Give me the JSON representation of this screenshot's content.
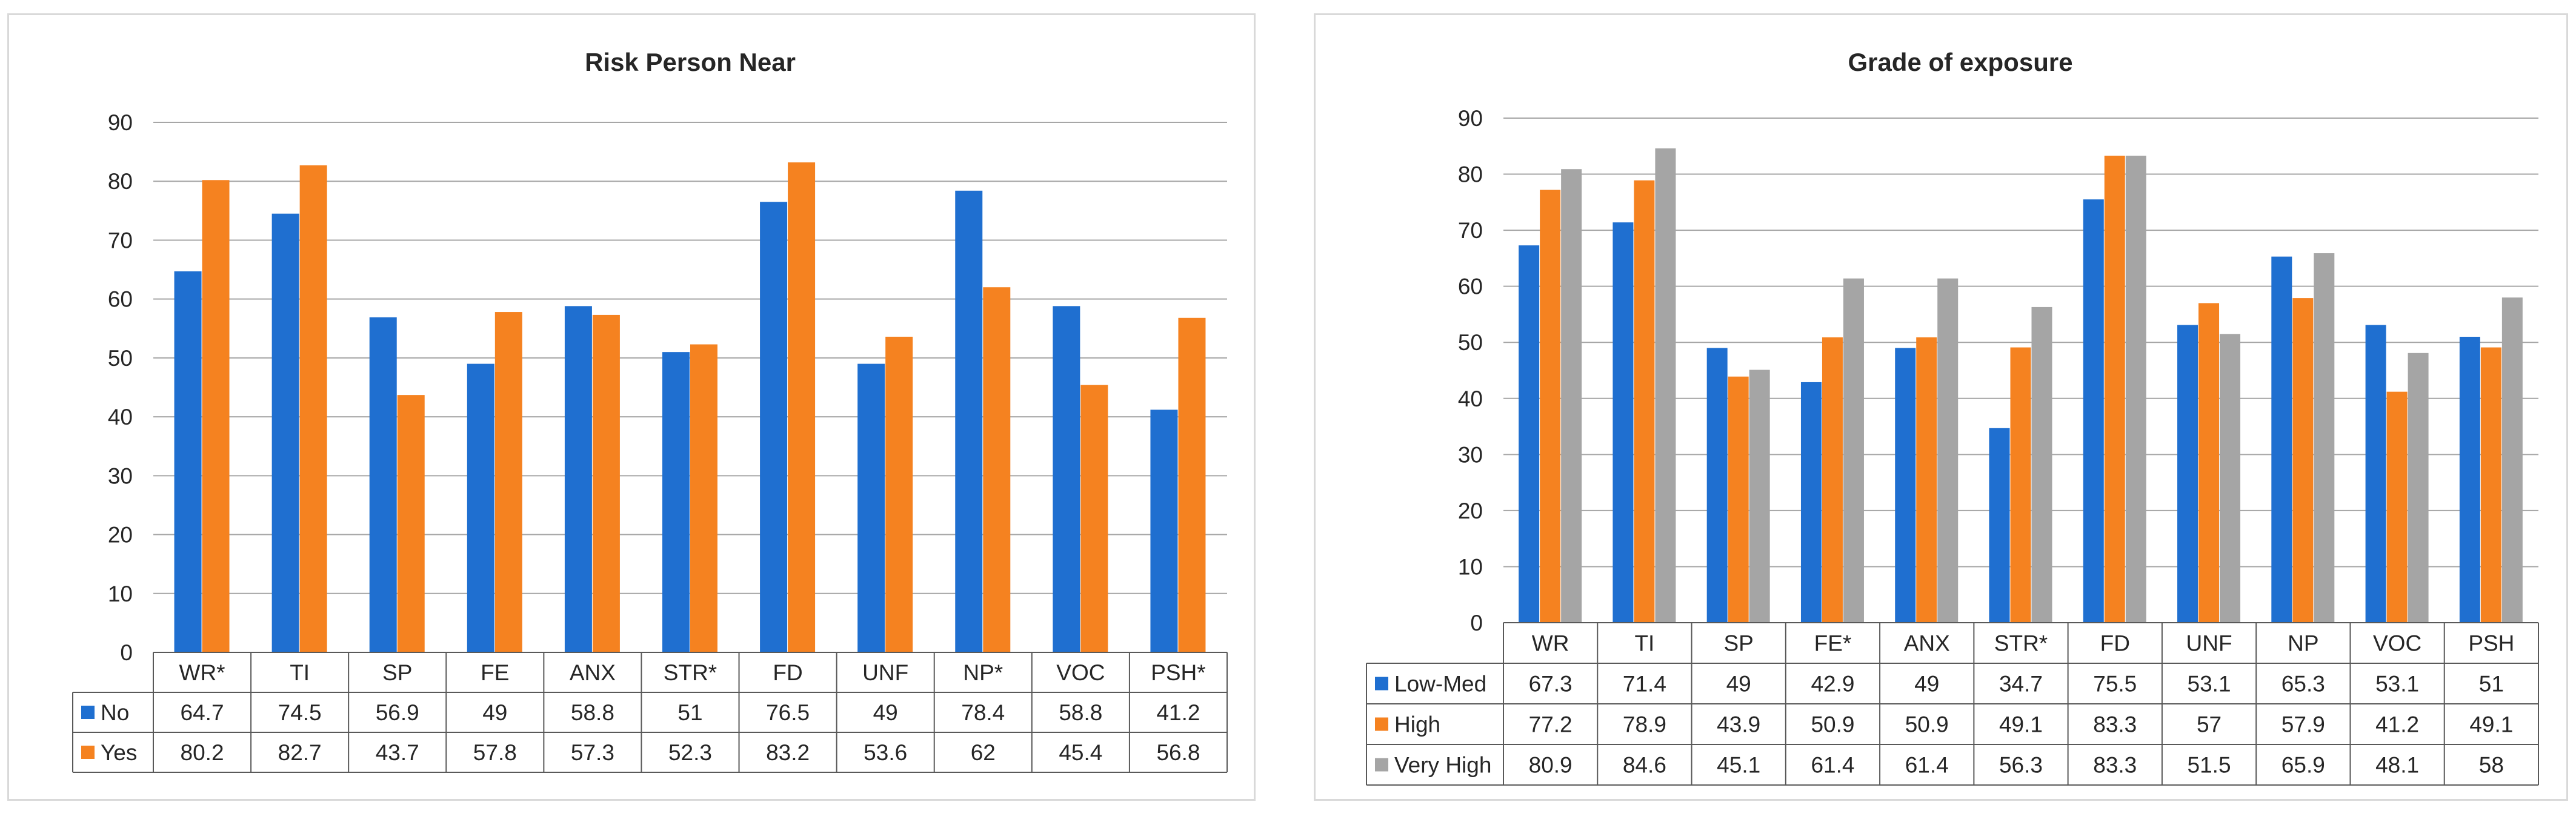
{
  "chart_data": [
    {
      "type": "bar",
      "title": "Risk Person Near",
      "categories": [
        "WR*",
        "TI",
        "SP",
        "FE",
        "ANX",
        "STR*",
        "FD",
        "UNF",
        "NP*",
        "VOC",
        "PSH*"
      ],
      "ylim": [
        0,
        90
      ],
      "yticks": [
        "0",
        "10",
        "20",
        "30",
        "40",
        "50",
        "60",
        "70",
        "80",
        "90"
      ],
      "grid": true,
      "legend": "data-table",
      "series": [
        {
          "name": "No",
          "color": "#1f6fd0",
          "values": [
            64.7,
            74.5,
            56.9,
            49,
            58.8,
            51,
            76.5,
            49,
            78.4,
            58.8,
            41.2
          ],
          "labels": [
            "64.7",
            "74.5",
            "56.9",
            "49",
            "58.8",
            "51",
            "76.5",
            "49",
            "78.4",
            "58.8",
            "41.2"
          ]
        },
        {
          "name": "Yes",
          "color": "#f58220",
          "values": [
            80.2,
            82.7,
            43.7,
            57.8,
            57.3,
            52.3,
            83.2,
            53.6,
            62,
            45.4,
            56.8
          ],
          "labels": [
            "80.2",
            "82.7",
            "43.7",
            "57.8",
            "57.3",
            "52.3",
            "83.2",
            "53.6",
            "62",
            "45.4",
            "56.8"
          ]
        }
      ]
    },
    {
      "type": "bar",
      "title": "Grade of exposure",
      "categories": [
        "WR",
        "TI",
        "SP",
        "FE*",
        "ANX",
        "STR*",
        "FD",
        "UNF",
        "NP",
        "VOC",
        "PSH"
      ],
      "ylim": [
        0,
        90
      ],
      "yticks": [
        "0",
        "10",
        "20",
        "30",
        "40",
        "50",
        "60",
        "70",
        "80",
        "90"
      ],
      "grid": true,
      "legend": "data-table",
      "series": [
        {
          "name": "Low-Med",
          "color": "#1f6fd0",
          "values": [
            67.3,
            71.4,
            49,
            42.9,
            49,
            34.7,
            75.5,
            53.1,
            65.3,
            53.1,
            51
          ],
          "labels": [
            "67.3",
            "71.4",
            "49",
            "42.9",
            "49",
            "34.7",
            "75.5",
            "53.1",
            "65.3",
            "53.1",
            "51"
          ]
        },
        {
          "name": "High",
          "color": "#f58220",
          "values": [
            77.2,
            78.9,
            43.9,
            50.9,
            50.9,
            49.1,
            83.3,
            57,
            57.9,
            41.2,
            49.1
          ],
          "labels": [
            "77.2",
            "78.9",
            "43.9",
            "50.9",
            "50.9",
            "49.1",
            "83.3",
            "57",
            "57.9",
            "41.2",
            "49.1"
          ]
        },
        {
          "name": "Very High",
          "color": "#a5a5a5",
          "values": [
            80.9,
            84.6,
            45.1,
            61.4,
            61.4,
            56.3,
            83.3,
            51.5,
            65.9,
            48.1,
            58
          ],
          "labels": [
            "80.9",
            "84.6",
            "45.1",
            "61.4",
            "61.4",
            "56.3",
            "83.3",
            "51.5",
            "65.9",
            "48.1",
            "58"
          ]
        }
      ]
    }
  ]
}
